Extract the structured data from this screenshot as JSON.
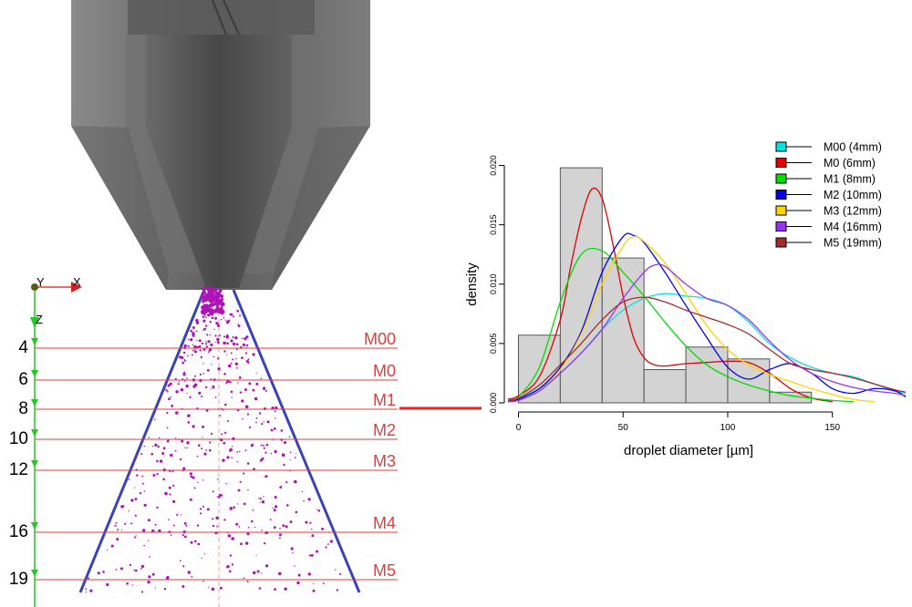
{
  "axes_triad": {
    "y_label": "Y",
    "x_label": "X",
    "z_label": "Z"
  },
  "measurement_planes": [
    {
      "name": "M00",
      "depth_label": "4"
    },
    {
      "name": "M0",
      "depth_label": "6"
    },
    {
      "name": "M1",
      "depth_label": "8"
    },
    {
      "name": "M2",
      "depth_label": "10"
    },
    {
      "name": "M3",
      "depth_label": "12"
    },
    {
      "name": "M4",
      "depth_label": "16"
    },
    {
      "name": "M5",
      "depth_label": "19"
    }
  ],
  "colors": {
    "plane_line": "#e53b3b",
    "spray_cone": "#3a42b8",
    "droplets": "#b012b8",
    "axis_green": "#1fcc1f",
    "histogram_fill": "#d3d3d3",
    "nozzle_body": "#6e6e6e"
  },
  "chart_data": {
    "type": "histogram+density",
    "xlabel": "droplet diameter [µm]",
    "ylabel": "density",
    "xlim": [
      -5,
      185
    ],
    "ylim": [
      0,
      0.0205
    ],
    "x_ticks": [
      "0",
      "50",
      "100",
      "150"
    ],
    "y_ticks": [
      "0.000",
      "0.005",
      "0.010",
      "0.015",
      "0.020"
    ],
    "histogram": {
      "bin_edges": [
        0,
        20,
        40,
        60,
        80,
        100,
        120,
        140
      ],
      "values": [
        0.0057,
        0.0198,
        0.0122,
        0.0028,
        0.0047,
        0.0037,
        0.0009
      ]
    },
    "legend_position": "top-right",
    "series": [
      {
        "name": "M00 (4mm)",
        "color": "#00e5e5",
        "x": [
          -5,
          0,
          10,
          20,
          30,
          40,
          50,
          60,
          70,
          80,
          90,
          100,
          110,
          120,
          130,
          140,
          150,
          160,
          170,
          180,
          185
        ],
        "y": [
          0.0002,
          0.0004,
          0.0012,
          0.0025,
          0.0042,
          0.0062,
          0.0078,
          0.0088,
          0.0092,
          0.009,
          0.0088,
          0.0082,
          0.0068,
          0.005,
          0.0038,
          0.003,
          0.0025,
          0.0022,
          0.0016,
          0.001,
          0.0008
        ]
      },
      {
        "name": "M0 (6mm)",
        "color": "#e00000",
        "x": [
          -5,
          0,
          10,
          20,
          25,
          30,
          35,
          40,
          45,
          50,
          55,
          60,
          65,
          70,
          75,
          80,
          90,
          100,
          110,
          120,
          130,
          140,
          150
        ],
        "y": [
          0.0003,
          0.0006,
          0.0022,
          0.007,
          0.0115,
          0.0155,
          0.018,
          0.0172,
          0.0135,
          0.009,
          0.0055,
          0.0038,
          0.0032,
          0.0031,
          0.0032,
          0.0033,
          0.0034,
          0.0035,
          0.0034,
          0.0025,
          0.0012,
          0.0004,
          0.0001
        ]
      },
      {
        "name": "M1 (8mm)",
        "color": "#00dd00",
        "x": [
          -5,
          0,
          10,
          20,
          30,
          40,
          50,
          60,
          70,
          80,
          90,
          100,
          110,
          120,
          130,
          140,
          150,
          160
        ],
        "y": [
          0.0002,
          0.0005,
          0.003,
          0.0085,
          0.0125,
          0.0128,
          0.011,
          0.009,
          0.0068,
          0.0048,
          0.0032,
          0.0022,
          0.0015,
          0.001,
          0.0006,
          0.0004,
          0.0002,
          0.0001
        ]
      },
      {
        "name": "M2 (10mm)",
        "color": "#0000ee",
        "x": [
          -5,
          0,
          10,
          20,
          30,
          40,
          50,
          55,
          60,
          70,
          80,
          90,
          100,
          110,
          120,
          130,
          140,
          150,
          160,
          170,
          180,
          185
        ],
        "y": [
          0.0001,
          0.0003,
          0.0012,
          0.003,
          0.006,
          0.011,
          0.014,
          0.0141,
          0.0135,
          0.011,
          0.0082,
          0.0055,
          0.003,
          0.002,
          0.0028,
          0.0033,
          0.0025,
          0.0012,
          0.0008,
          0.0012,
          0.001,
          0.0005
        ]
      },
      {
        "name": "M3 (12mm)",
        "color": "#ffd400",
        "x": [
          -5,
          0,
          10,
          20,
          30,
          40,
          50,
          55,
          60,
          70,
          80,
          90,
          100,
          110,
          120,
          130,
          140,
          150,
          160,
          170
        ],
        "y": [
          0.0001,
          0.0002,
          0.001,
          0.0028,
          0.0058,
          0.01,
          0.0132,
          0.014,
          0.0136,
          0.0118,
          0.0092,
          0.0065,
          0.0045,
          0.0032,
          0.0024,
          0.0018,
          0.0012,
          0.0007,
          0.0003,
          0.0001
        ]
      },
      {
        "name": "M4 (16mm)",
        "color": "#9933ee",
        "x": [
          -5,
          0,
          10,
          20,
          30,
          40,
          50,
          60,
          65,
          70,
          80,
          90,
          100,
          110,
          120,
          130,
          140,
          150,
          160,
          170,
          180,
          185
        ],
        "y": [
          0.0001,
          0.0002,
          0.001,
          0.0025,
          0.0042,
          0.0062,
          0.0088,
          0.011,
          0.0116,
          0.0115,
          0.01,
          0.0088,
          0.0082,
          0.007,
          0.0052,
          0.0036,
          0.0025,
          0.0018,
          0.0013,
          0.001,
          0.0008,
          0.0006
        ]
      },
      {
        "name": "M5 (19mm)",
        "color": "#a52a2a",
        "x": [
          -5,
          0,
          10,
          20,
          30,
          40,
          50,
          60,
          70,
          80,
          90,
          100,
          110,
          120,
          130,
          140,
          150,
          160,
          170,
          180,
          185
        ],
        "y": [
          0.0002,
          0.0004,
          0.0015,
          0.0032,
          0.005,
          0.007,
          0.0085,
          0.0089,
          0.0085,
          0.0078,
          0.0072,
          0.0066,
          0.0058,
          0.0045,
          0.0033,
          0.0028,
          0.0025,
          0.0021,
          0.0016,
          0.0011,
          0.0009
        ]
      }
    ]
  }
}
